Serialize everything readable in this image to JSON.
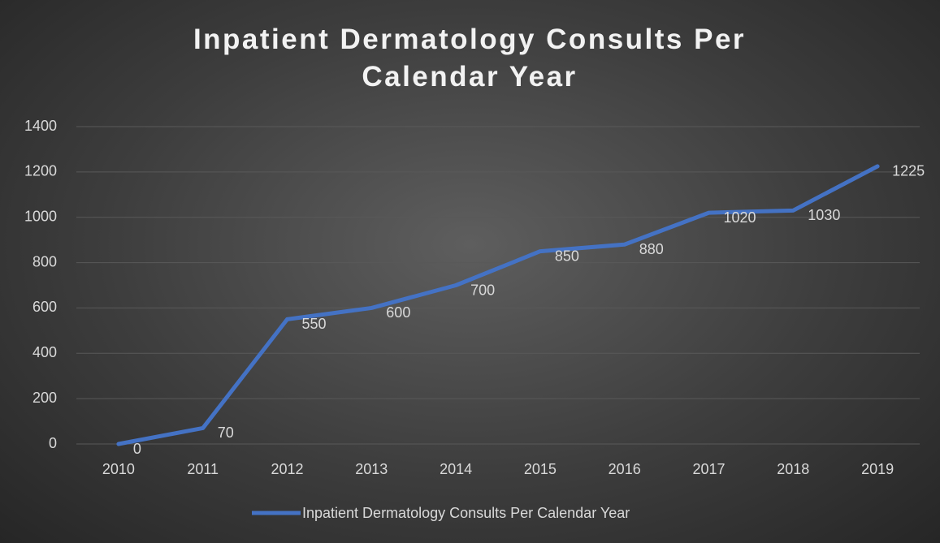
{
  "chart_data": {
    "type": "line",
    "title": "Inpatient Dermatology Consults Per Calendar Year",
    "categories": [
      "2010",
      "2011",
      "2012",
      "2013",
      "2014",
      "2015",
      "2016",
      "2017",
      "2018",
      "2019"
    ],
    "series": [
      {
        "name": "Inpatient Dermatology Consults Per Calendar Year",
        "color": "#4472c4",
        "values": [
          0,
          70,
          550,
          600,
          700,
          850,
          880,
          1020,
          1030,
          1225
        ]
      }
    ],
    "ylim": [
      0,
      1400
    ],
    "yticks": [
      0,
      200,
      400,
      600,
      800,
      1000,
      1200,
      1400
    ],
    "grid": true,
    "legend": "bottom"
  }
}
